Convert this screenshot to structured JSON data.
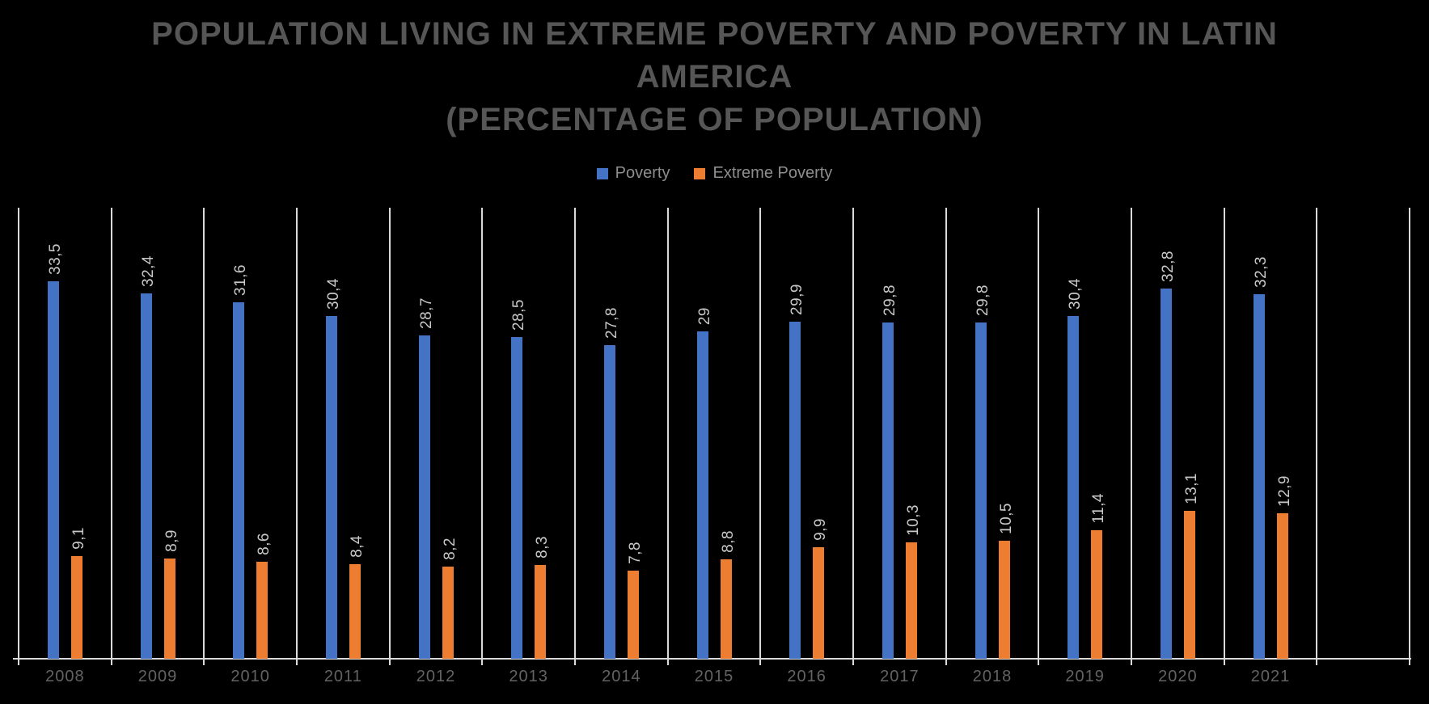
{
  "title": {
    "line1": "POPULATION LIVING IN EXTREME POVERTY AND POVERTY IN LATIN",
    "line2": "AMERICA",
    "line3": "(PERCENTAGE OF POPULATION)"
  },
  "legend": {
    "items": [
      {
        "label": "Poverty",
        "color": "#4472C4"
      },
      {
        "label": "Extreme Poverty",
        "color": "#ED7D31"
      }
    ]
  },
  "chart_data": {
    "type": "bar",
    "title": "POPULATION LIVING IN EXTREME POVERTY AND POVERTY IN LATIN AMERICA (PERCENTAGE OF POPULATION)",
    "categories": [
      "2008",
      "2009",
      "2010",
      "2011",
      "2012",
      "2013",
      "2014",
      "2015",
      "2016",
      "2017",
      "2018",
      "2019",
      "2020",
      "2021"
    ],
    "series": [
      {
        "name": "Poverty",
        "color": "#4472C4",
        "values": [
          33.5,
          32.4,
          31.6,
          30.4,
          28.7,
          28.5,
          27.8,
          29,
          29.9,
          29.8,
          29.8,
          30.4,
          32.8,
          32.3
        ],
        "labels": [
          "33,5",
          "32,4",
          "31,6",
          "30,4",
          "28,7",
          "28,5",
          "27,8",
          "29",
          "29,9",
          "29,8",
          "29,8",
          "30,4",
          "32,8",
          "32,3"
        ]
      },
      {
        "name": "Extreme Poverty",
        "color": "#ED7D31",
        "values": [
          9.1,
          8.9,
          8.6,
          8.4,
          8.2,
          8.3,
          7.8,
          8.8,
          9.9,
          10.3,
          10.5,
          11.4,
          13.1,
          12.9
        ],
        "labels": [
          "9,1",
          "8,9",
          "8,6",
          "8,4",
          "8,2",
          "8,3",
          "7,8",
          "8,8",
          "9,9",
          "10,3",
          "10,5",
          "11,4",
          "13,1",
          "12,9"
        ]
      }
    ],
    "xlabel": "",
    "ylabel": "",
    "ylim": [
      0,
      40
    ],
    "grid": "vertical-only",
    "gridline_color": "#d9d9d9",
    "background": "#000000",
    "legend_position": "top-center",
    "data_label_rotation": 90,
    "empty_trailing_categories": 1
  }
}
